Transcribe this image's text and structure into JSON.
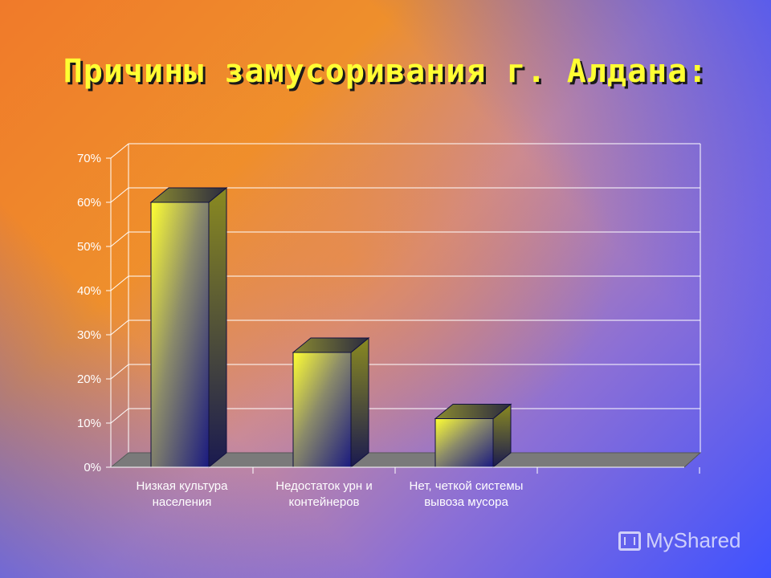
{
  "slide": {
    "title": "Причины замусоривания г. Алдана:",
    "watermark": "MyShared"
  },
  "chart_data": {
    "type": "bar",
    "categories": [
      [
        "Низкая культура",
        "населения"
      ],
      [
        "Недостаток урн и",
        "контейнеров"
      ],
      [
        "Нет, четкой системы",
        "вывоза мусора"
      ]
    ],
    "values": [
      60,
      26,
      11
    ],
    "ylim": [
      0,
      70
    ],
    "yticks": [
      "0%",
      "10%",
      "20%",
      "30%",
      "40%",
      "50%",
      "60%",
      "70%"
    ],
    "grid": true,
    "colors": {
      "bar_light": "#ffff33",
      "bar_dark": "#1c1c78",
      "floor": "#7a7a7a"
    }
  }
}
